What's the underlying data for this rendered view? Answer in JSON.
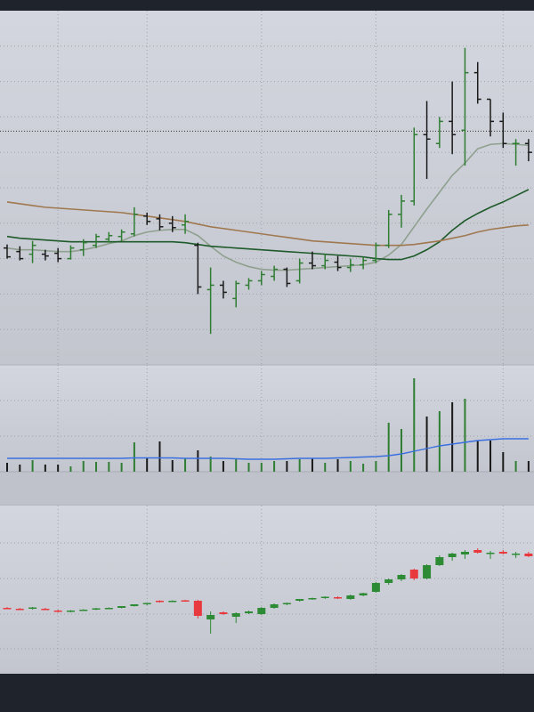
{
  "chart_data": [
    {
      "type": "ohlc",
      "ylim": [
        0,
        40
      ],
      "yticks": [
        4,
        8,
        12,
        16,
        20,
        24,
        28,
        32,
        36
      ],
      "grid": true,
      "xgrid": [
        4,
        11,
        20,
        29,
        39
      ],
      "up_color": "#2e7d32",
      "down_color": "#1a1a1a",
      "price_line": 26.4,
      "open": [
        13.2,
        12.8,
        12.5,
        12.5,
        12.6,
        12.0,
        13.0,
        13.5,
        14.2,
        14.5,
        14.8,
        16.8,
        16.5,
        16.0,
        15.8,
        13.5,
        8.5,
        9.0,
        7.5,
        9.0,
        9.5,
        10.0,
        10.8,
        9.5,
        11.5,
        11.2,
        11.6,
        11.0,
        11.3,
        11.8,
        13.5,
        17.0,
        18.5,
        26.0,
        25.0,
        27.5,
        26.5,
        33.0,
        30.0,
        27.5,
        25.0,
        25.0
      ],
      "high": [
        13.6,
        13.4,
        14.0,
        13.0,
        13.2,
        13.5,
        14.2,
        14.8,
        15.0,
        15.3,
        17.8,
        17.2,
        17.0,
        16.8,
        17.0,
        13.8,
        11.0,
        9.5,
        9.5,
        9.8,
        10.6,
        11.2,
        11.0,
        12.0,
        12.8,
        12.5,
        12.3,
        12.0,
        12.2,
        13.8,
        17.5,
        19.2,
        26.8,
        29.8,
        28.0,
        32.0,
        35.8,
        34.2,
        30.0,
        28.5,
        25.5,
        25.5
      ],
      "low": [
        12.0,
        11.8,
        11.5,
        11.8,
        11.6,
        11.9,
        12.3,
        13.2,
        13.8,
        14.0,
        14.5,
        15.8,
        15.2,
        15.0,
        14.8,
        8.0,
        3.5,
        7.5,
        6.5,
        8.5,
        9.0,
        9.5,
        8.8,
        9.2,
        10.8,
        10.8,
        10.6,
        10.5,
        10.8,
        11.5,
        13.2,
        15.5,
        18.0,
        21.0,
        24.5,
        23.8,
        22.5,
        29.5,
        25.8,
        24.5,
        22.5,
        23.0
      ],
      "close": [
        12.2,
        12.0,
        13.5,
        12.3,
        12.0,
        13.2,
        13.8,
        14.5,
        14.6,
        15.0,
        17.0,
        16.2,
        15.6,
        15.5,
        16.2,
        8.8,
        9.0,
        8.2,
        9.2,
        9.5,
        10.2,
        10.8,
        9.2,
        11.5,
        11.2,
        11.8,
        11.0,
        11.3,
        11.8,
        13.5,
        17.0,
        18.5,
        26.0,
        25.5,
        27.5,
        26.0,
        33.0,
        30.0,
        27.5,
        25.0,
        25.0,
        24.0
      ],
      "lines": [
        {
          "color": "#8fa08f",
          "values": [
            13.2,
            13.0,
            13.0,
            12.9,
            12.8,
            12.8,
            13.0,
            13.3,
            13.7,
            14.0,
            14.6,
            15.0,
            15.2,
            15.3,
            15.3,
            14.6,
            13.4,
            12.3,
            11.6,
            11.1,
            10.8,
            10.7,
            10.7,
            10.8,
            10.9,
            11.0,
            11.1,
            11.2,
            11.3,
            11.6,
            12.4,
            13.6,
            15.6,
            17.6,
            19.5,
            21.4,
            22.8,
            24.4,
            24.9,
            25.0,
            24.9,
            24.8
          ]
        },
        {
          "color": "#1e5a2a",
          "values": [
            14.5,
            14.3,
            14.2,
            14.1,
            14.0,
            13.9,
            13.9,
            13.9,
            13.9,
            13.9,
            13.9,
            13.9,
            13.9,
            13.9,
            13.8,
            13.6,
            13.4,
            13.3,
            13.2,
            13.1,
            13.0,
            12.9,
            12.8,
            12.7,
            12.6,
            12.5,
            12.4,
            12.3,
            12.2,
            12.0,
            11.9,
            11.9,
            12.3,
            13.0,
            13.9,
            15.2,
            16.3,
            17.1,
            17.8,
            18.4,
            19.1,
            19.8
          ]
        },
        {
          "color": "#a07850",
          "values": [
            18.4,
            18.2,
            18.0,
            17.8,
            17.7,
            17.6,
            17.5,
            17.4,
            17.3,
            17.2,
            17.0,
            16.8,
            16.6,
            16.4,
            16.2,
            15.9,
            15.6,
            15.4,
            15.2,
            15.0,
            14.8,
            14.6,
            14.4,
            14.2,
            14.0,
            13.9,
            13.8,
            13.7,
            13.6,
            13.5,
            13.5,
            13.5,
            13.6,
            13.8,
            14.0,
            14.3,
            14.6,
            15.0,
            15.3,
            15.5,
            15.7,
            15.8
          ]
        }
      ]
    },
    {
      "type": "volume",
      "ylim": [
        0,
        120
      ],
      "yticks": [
        40,
        80
      ],
      "grid": true,
      "xgrid": [
        4,
        11,
        20,
        29,
        39
      ],
      "up_color": "#2e7d32",
      "down_color": "#1a1a1a",
      "values": [
        10,
        8,
        13,
        8,
        8,
        6,
        12,
        11,
        11,
        10,
        33,
        15,
        34,
        13,
        15,
        24,
        17,
        12,
        15,
        10,
        10,
        12,
        12,
        14,
        15,
        10,
        14,
        12,
        9,
        12,
        55,
        48,
        105,
        62,
        68,
        78,
        82,
        35,
        35,
        22,
        12,
        12
      ],
      "line": {
        "color": "#3a6fe0",
        "values": [
          15,
          15,
          15,
          15,
          15,
          15,
          15,
          15,
          15,
          15,
          15.5,
          15.5,
          15.5,
          15.5,
          15,
          15,
          15,
          15,
          14.5,
          14,
          14,
          14,
          14.5,
          15,
          15,
          15,
          15.5,
          16,
          16.5,
          17,
          18,
          20,
          23,
          26,
          29,
          31,
          33,
          35,
          36,
          37,
          37,
          37
        ]
      }
    },
    {
      "type": "candlestick",
      "ylim": [
        0,
        189
      ],
      "yticks": [
        28,
        67,
        107,
        147
      ],
      "grid": true,
      "xgrid": [
        4,
        11,
        20,
        29,
        39
      ],
      "up_color": "#2e8b35",
      "down_color": "#e8393f",
      "open": [
        74,
        73,
        73,
        73,
        71,
        70,
        71,
        72,
        73.5,
        74,
        76,
        78,
        82,
        81,
        82.5,
        82,
        61,
        69,
        64,
        68,
        67,
        74,
        78,
        82,
        84,
        85,
        86,
        84,
        88,
        92,
        102,
        106,
        117,
        107,
        122,
        131,
        134,
        139,
        135,
        137,
        134,
        135
      ],
      "high": [
        75,
        74,
        75,
        74,
        72,
        71.5,
        72.5,
        74,
        74.5,
        76,
        78,
        79.5,
        82.5,
        82.5,
        83,
        83,
        70,
        70,
        69,
        71,
        75,
        79,
        80,
        84,
        85.5,
        87,
        87,
        89,
        91,
        103,
        107,
        112,
        118,
        123,
        133,
        136,
        139,
        141,
        138,
        139,
        137,
        137
      ],
      "low": [
        73,
        72,
        72,
        72,
        69,
        69,
        70.5,
        71.5,
        73,
        73.5,
        75.5,
        77,
        80,
        80.5,
        81,
        62,
        45,
        66,
        57,
        67,
        66,
        73,
        77,
        81,
        83,
        84,
        84,
        83,
        87,
        91,
        100,
        104,
        105,
        106,
        121,
        127,
        129,
        135,
        129,
        134,
        130,
        131
      ],
      "close": [
        73,
        72.5,
        74.5,
        72,
        70,
        71,
        72,
        73.5,
        74,
        76,
        78,
        79.5,
        81,
        82,
        81.5,
        65,
        66,
        67,
        68,
        70,
        74,
        78,
        79.5,
        84,
        85,
        86.5,
        84.5,
        88,
        90.5,
        102,
        106,
        111,
        107,
        122,
        131,
        135,
        137,
        136,
        136,
        135,
        135,
        132
      ]
    }
  ]
}
